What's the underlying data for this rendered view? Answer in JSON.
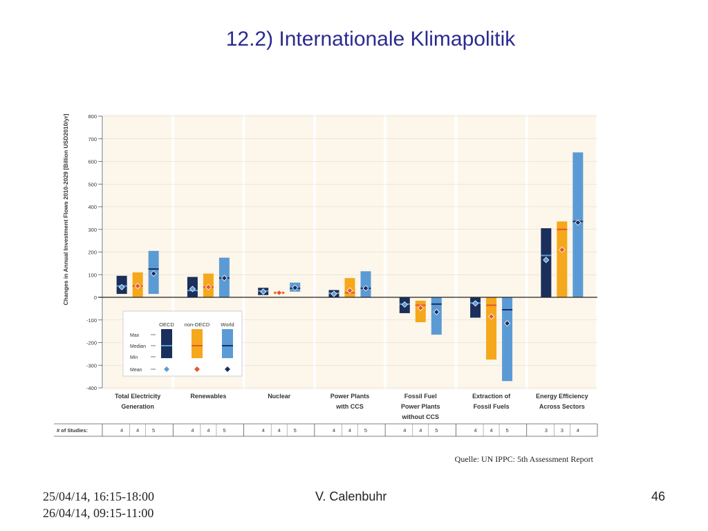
{
  "slide": {
    "title": "12.2) Internationale Klimapolitik",
    "source": "Quelle: UN IPPC: 5th Assessment Report",
    "footer_dates": [
      "25/04/14, 16:15-18:00",
      "26/04/14, 09:15-11:00"
    ],
    "footer_author": "V. Calenbuhr",
    "page_number": "46"
  },
  "chart_data": {
    "type": "bar",
    "ylabel": "Changes in Annual Investment Flows 2010-2029 [Billion USD2010/yr]",
    "ylim": [
      -400,
      800
    ],
    "yticks": [
      "800",
      "700",
      "600",
      "500",
      "400",
      "300",
      "200",
      "100",
      "0",
      "-100",
      "-200",
      "-300",
      "-400"
    ],
    "groups": [
      {
        "label": [
          "Total Electricity",
          "Generation"
        ],
        "studies": [
          "4",
          "4",
          "5"
        ]
      },
      {
        "label": [
          "Renewables"
        ],
        "studies": [
          "4",
          "4",
          "5"
        ]
      },
      {
        "label": [
          "Nuclear"
        ],
        "studies": [
          "4",
          "4",
          "5"
        ]
      },
      {
        "label": [
          "Power Plants",
          "with CCS"
        ],
        "studies": [
          "4",
          "4",
          "5"
        ]
      },
      {
        "label": [
          "Fossil Fuel",
          "Power Plants",
          "without CCS"
        ],
        "studies": [
          "4",
          "4",
          "5"
        ]
      },
      {
        "label": [
          "Extraction of",
          "Fossil Fuels"
        ],
        "studies": [
          "4",
          "4",
          "5"
        ]
      },
      {
        "label": [
          "Energy Efficiency",
          "Across Sectors"
        ],
        "studies": [
          "3",
          "3",
          "4"
        ]
      }
    ],
    "series": [
      {
        "name": "OECD",
        "color": "#1b2f5c",
        "mean_color": "#5b9bd5",
        "bars": [
          {
            "min": 15,
            "max": 95,
            "median": 50,
            "mean": 45
          },
          {
            "min": 0,
            "max": 90,
            "median": 30,
            "mean": 37
          },
          {
            "min": 10,
            "max": 42,
            "median": 28,
            "mean": 25
          },
          {
            "min": 0,
            "max": 32,
            "median": 18,
            "mean": 15
          },
          {
            "min": -70,
            "max": 0,
            "median": -30,
            "mean": -32
          },
          {
            "min": -90,
            "max": 0,
            "median": -25,
            "mean": -27
          },
          {
            "min": 0,
            "max": 305,
            "median": 185,
            "mean": 165
          }
        ]
      },
      {
        "name": "non-OECD",
        "color": "#f5a81c",
        "mean_color": "#e4572e",
        "bars": [
          {
            "min": 0,
            "max": 110,
            "median": 50,
            "mean": 50
          },
          {
            "min": 0,
            "max": 105,
            "median": 45,
            "mean": 45
          },
          {
            "min": 15,
            "max": 25,
            "median": 20,
            "mean": 20
          },
          {
            "min": 0,
            "max": 85,
            "median": 20,
            "mean": 30
          },
          {
            "min": -110,
            "max": -15,
            "median": -35,
            "mean": -47
          },
          {
            "min": -275,
            "max": 0,
            "median": -35,
            "mean": -85
          },
          {
            "min": 0,
            "max": 335,
            "median": 300,
            "mean": 210
          }
        ]
      },
      {
        "name": "World",
        "color": "#5b9bd5",
        "mean_color": "#1b2f5c",
        "bars": [
          {
            "min": 15,
            "max": 205,
            "median": 125,
            "mean": 105
          },
          {
            "min": 0,
            "max": 175,
            "median": 85,
            "mean": 85
          },
          {
            "min": 25,
            "max": 65,
            "median": 40,
            "mean": 42
          },
          {
            "min": 0,
            "max": 115,
            "median": 40,
            "mean": 40
          },
          {
            "min": -165,
            "max": 0,
            "median": -30,
            "mean": -65
          },
          {
            "min": -370,
            "max": 0,
            "median": -55,
            "mean": -115
          },
          {
            "min": 0,
            "max": 640,
            "median": 335,
            "mean": 330
          }
        ]
      }
    ],
    "legend": {
      "headers": [
        "OECD",
        "non-OECD",
        "World"
      ],
      "rows": [
        "Max",
        "Median",
        "Min",
        "Mean"
      ],
      "placement": "bottom-left"
    },
    "studies_label": "# of Studies:"
  }
}
